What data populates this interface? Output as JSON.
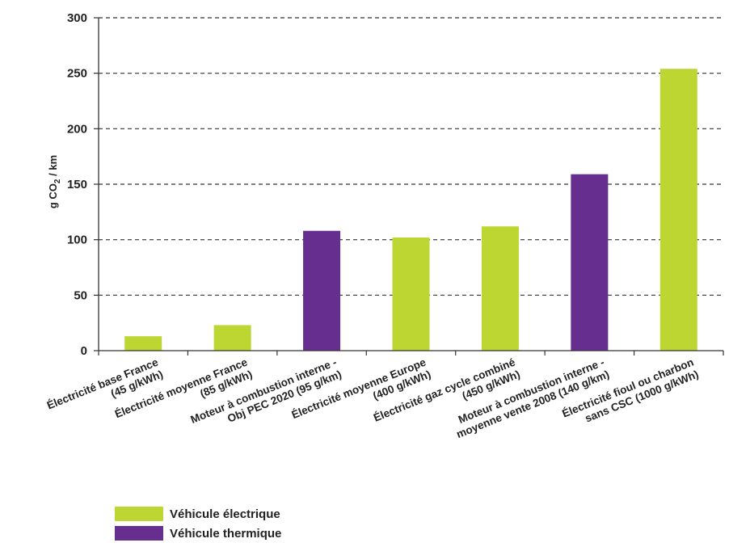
{
  "chart_data": {
    "type": "bar",
    "ylabel": "g CO2 / km",
    "ylim": [
      0,
      300
    ],
    "yticks": [
      0,
      50,
      100,
      150,
      200,
      250,
      300
    ],
    "grid": true,
    "legend_position": "bottom-left",
    "categories": [
      [
        "Électricité base France",
        "(45 g/kWh)"
      ],
      [
        "Électricité moyenne France",
        "(85 g/kWh)"
      ],
      [
        "Moteur à combustion interne -",
        "Obj PEC 2020 (95 g/km)"
      ],
      [
        "Électricité moyenne Europe",
        "(400 g/kWh)"
      ],
      [
        "Électricité gaz cycle combiné",
        "(450 g/kWh)"
      ],
      [
        "Moteur à combustion interne -",
        "moyenne vente 2008 (140 g/km)"
      ],
      [
        "Électricité fioul ou charbon",
        "sans CSC (1000 g/kWh)"
      ]
    ],
    "values": [
      13,
      23,
      108,
      102,
      112,
      159,
      254
    ],
    "bar_series": [
      0,
      0,
      1,
      0,
      0,
      1,
      0
    ],
    "series": [
      {
        "name": "Véhicule électrique",
        "color": "#bdd632"
      },
      {
        "name": "Véhicule thermique",
        "color": "#662e8e"
      }
    ]
  },
  "legend": {
    "electric_label": "Véhicule électrique",
    "thermal_label": "Véhicule thermique"
  },
  "colors": {
    "electric": "#bdd632",
    "thermal": "#662e8e"
  }
}
